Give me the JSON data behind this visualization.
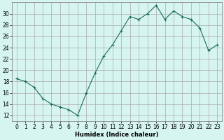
{
  "x": [
    0,
    1,
    2,
    3,
    4,
    5,
    6,
    7,
    8,
    9,
    10,
    11,
    12,
    13,
    14,
    15,
    16,
    17,
    18,
    19,
    20,
    21,
    22,
    23
  ],
  "y": [
    18.5,
    18.0,
    17.0,
    15.0,
    14.0,
    13.5,
    13.0,
    12.0,
    16.0,
    19.5,
    22.5,
    24.5,
    27.0,
    29.5,
    29.0,
    30.0,
    31.5,
    29.0,
    30.5,
    29.5,
    29.0,
    27.5,
    23.5,
    24.5
  ],
  "xlabel": "Humidex (Indice chaleur)",
  "line_color": "#1a6b5a",
  "marker": "+",
  "bg_color": "#d6f5f0",
  "grid_color": "#aaaaaa",
  "ylim": [
    11,
    32
  ],
  "xlim": [
    -0.5,
    23.5
  ],
  "yticks": [
    12,
    14,
    16,
    18,
    20,
    22,
    24,
    26,
    28,
    30
  ],
  "xticks": [
    0,
    1,
    2,
    3,
    4,
    5,
    6,
    7,
    8,
    9,
    10,
    11,
    12,
    13,
    14,
    15,
    16,
    17,
    18,
    19,
    20,
    21,
    22,
    23
  ],
  "xlabel_fontsize": 6.0,
  "tick_fontsize": 5.5,
  "linewidth": 0.8,
  "markersize": 3.5
}
